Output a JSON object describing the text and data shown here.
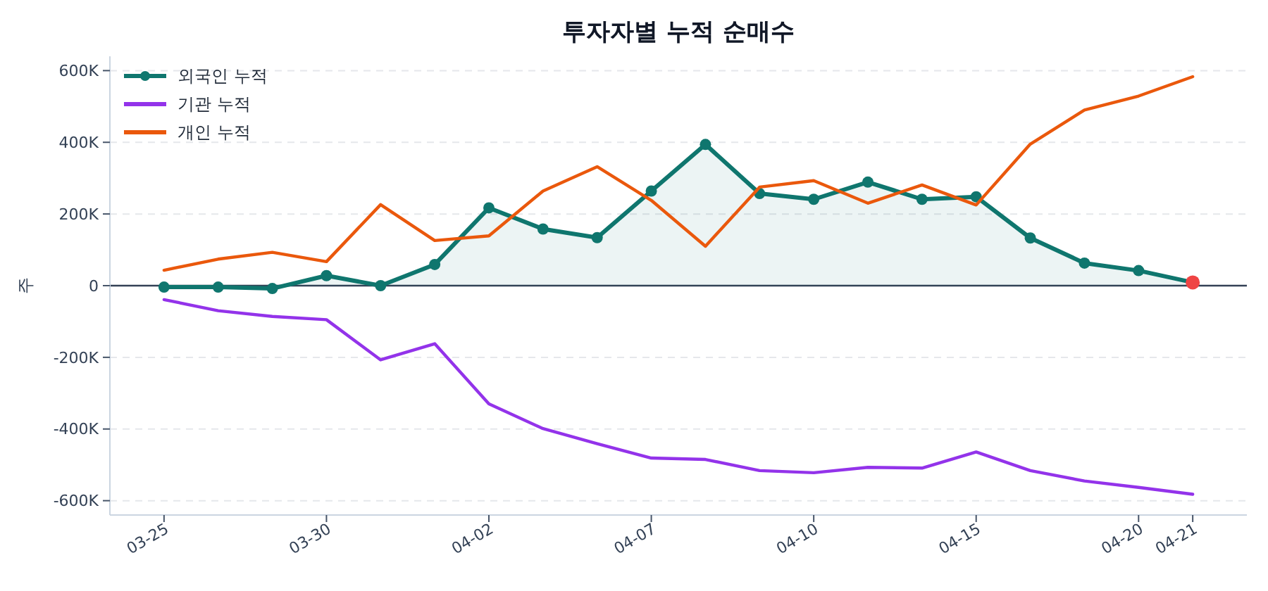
{
  "chart_data": {
    "type": "line",
    "title": "투자자별 누적 순매수",
    "ylabel": "주",
    "categories": [
      "03-25",
      null,
      null,
      "03-30",
      null,
      null,
      "04-02",
      null,
      null,
      "04-07",
      null,
      null,
      "04-10",
      null,
      null,
      "04-15",
      null,
      null,
      "04-20",
      "04-21"
    ],
    "series": [
      {
        "name": "외국인 누적",
        "type": "area",
        "color": "#0f766e",
        "marker": "circle",
        "values": [
          -4000,
          -4000,
          -8000,
          28000,
          0,
          59000,
          217000,
          158000,
          134000,
          264000,
          394000,
          257000,
          241000,
          289000,
          241000,
          248000,
          133000,
          63000,
          42000,
          9000
        ]
      },
      {
        "name": "기관 누적",
        "color": "#9333ea",
        "values": [
          -39000,
          -70000,
          -86000,
          -95000,
          -207000,
          -162000,
          -330000,
          -399000,
          -441000,
          -481000,
          -485000,
          -516000,
          -522000,
          -507000,
          -509000,
          -464000,
          -516000,
          -545000,
          -563000,
          -582000
        ]
      },
      {
        "name": "개인 누적",
        "color": "#ea580c",
        "values": [
          43000,
          74000,
          93000,
          67000,
          226000,
          126000,
          139000,
          264000,
          332000,
          238000,
          110000,
          275000,
          293000,
          230000,
          281000,
          225000,
          395000,
          490000,
          529000,
          583000
        ]
      },
      {
        "type": "scatter",
        "color": "#ef4444",
        "marker": "circle",
        "x": [
          "04-21"
        ],
        "values": [
          9000
        ]
      }
    ],
    "ylim": [
      -640000,
      640000
    ],
    "yticks": [
      {
        "value": -600000,
        "label": "-600K"
      },
      {
        "value": -400000,
        "label": "-400K"
      },
      {
        "value": -200000,
        "label": "-200K"
      },
      0,
      {
        "value": 200000,
        "label": "200K"
      },
      {
        "value": 400000,
        "label": "400K"
      },
      {
        "value": 600000,
        "label": "600K"
      }
    ],
    "ref_lines": [
      {
        "axis": "y",
        "value": 0,
        "color": "#334155"
      }
    ],
    "grid": "y",
    "legend": "top left"
  }
}
